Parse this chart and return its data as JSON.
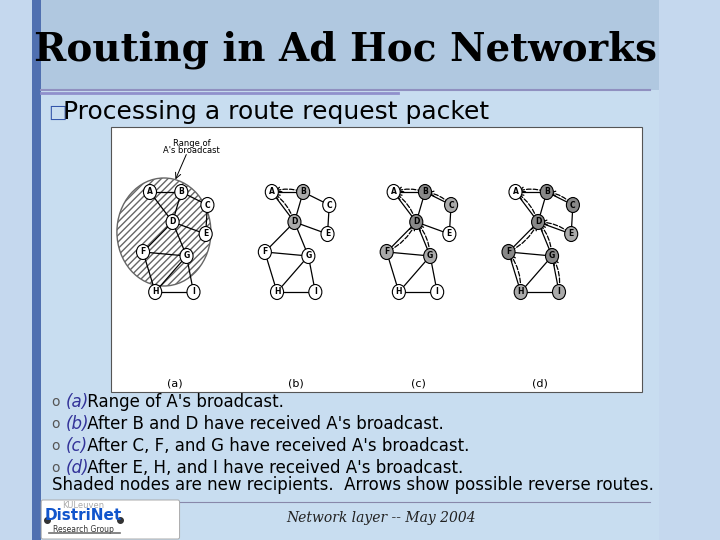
{
  "title": "Routing in Ad Hoc Networks",
  "title_fontsize": 28,
  "title_color": "#000000",
  "bg_top": "#adc6e0",
  "bg_bottom": "#c5d8ee",
  "title_bg": "#b0c8e0",
  "content_bg": "#c8ddf0",
  "left_bar_color": "#5070b0",
  "separator_color": "#9090c0",
  "bullet_main": "Processing a route request packet",
  "bullet_main_fontsize": 18,
  "bullet_symbol": "□",
  "sub_bullets": [
    [
      "(a)",
      " Range of A's broadcast."
    ],
    [
      "(b)",
      " After B and D have received A's broadcast."
    ],
    [
      "(c)",
      " After C, F, and G have received A's broadcast."
    ],
    [
      "(d)",
      " After E, H, and I have received A's broadcast."
    ]
  ],
  "sub_bullet_fontsize": 12,
  "shaded_note": "Shaded nodes are new recipients.  Arrows show possible reverse routes.",
  "shaded_note_fontsize": 12,
  "footer_text": "Network layer -- May 2004",
  "footer_fontsize": 10,
  "distrinet_text": "DistriNet",
  "research_group_text": "Research Group"
}
